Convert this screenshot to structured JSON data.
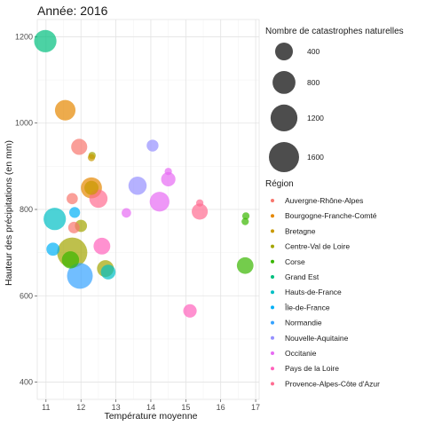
{
  "chart_data": {
    "type": "scatter",
    "title": "Année: 2016",
    "xlabel": "Température moyenne",
    "ylabel": "Hauteur des précipitations (en mm)",
    "xlim": [
      10.75,
      17.1
    ],
    "ylim": [
      360,
      1240
    ],
    "xticks": [
      11,
      12,
      13,
      14,
      15,
      16,
      17
    ],
    "yticks": [
      400,
      600,
      800,
      1000,
      1200
    ],
    "grid": true,
    "size_legend": {
      "title": "Nombre de catastrophes naturelles",
      "values": [
        400,
        800,
        1200,
        1600
      ],
      "color": "#4d4d4d"
    },
    "color_legend": {
      "title": "Région",
      "placement": "right",
      "items": [
        {
          "name": "Auvergne-Rhône-Alpes",
          "color": "#F8766D"
        },
        {
          "name": "Bourgogne-Franche-Comté",
          "color": "#E58700"
        },
        {
          "name": "Bretagne",
          "color": "#C99800"
        },
        {
          "name": "Centre-Val de Loire",
          "color": "#A3A500"
        },
        {
          "name": "Corse",
          "color": "#39B600"
        },
        {
          "name": "Grand Est",
          "color": "#00BF7D"
        },
        {
          "name": "Hauts-de-France",
          "color": "#00BFC4"
        },
        {
          "name": "Île-de-France",
          "color": "#00B0F6"
        },
        {
          "name": "Normandie",
          "color": "#35A2FF"
        },
        {
          "name": "Nouvelle-Aquitaine",
          "color": "#9590FF"
        },
        {
          "name": "Occitanie",
          "color": "#E76BF3"
        },
        {
          "name": "Pays de la Loire",
          "color": "#FF62BC"
        },
        {
          "name": "Provence-Alpes-Côte d'Azur",
          "color": "#FF6C91"
        }
      ]
    },
    "points": [
      {
        "x": 10.98,
        "y": 1190,
        "size": 750,
        "region": "Grand Est"
      },
      {
        "x": 11.55,
        "y": 1030,
        "size": 600,
        "region": "Bourgogne-Franche-Comté"
      },
      {
        "x": 11.95,
        "y": 945,
        "size": 300,
        "region": "Auvergne-Rhône-Alpes"
      },
      {
        "x": 12.32,
        "y": 925,
        "size": 10,
        "region": "Centre-Val de Loire"
      },
      {
        "x": 12.3,
        "y": 920,
        "size": 10,
        "region": "Bretagne"
      },
      {
        "x": 12.3,
        "y": 850,
        "size": 640,
        "region": "Bourgogne-Franche-Comté"
      },
      {
        "x": 12.3,
        "y": 850,
        "size": 200,
        "region": "Bretagne"
      },
      {
        "x": 12.5,
        "y": 825,
        "size": 430,
        "region": "Provence-Alpes-Côte d'Azur"
      },
      {
        "x": 11.75,
        "y": 825,
        "size": 90,
        "region": "Auvergne-Rhône-Alpes"
      },
      {
        "x": 11.25,
        "y": 778,
        "size": 750,
        "region": "Hauts-de-France"
      },
      {
        "x": 11.8,
        "y": 758,
        "size": 100,
        "region": "Auvergne-Rhône-Alpes"
      },
      {
        "x": 12.0,
        "y": 762,
        "size": 120,
        "region": "Centre-Val de Loire"
      },
      {
        "x": 11.82,
        "y": 793,
        "size": 80,
        "region": "Île-de-France"
      },
      {
        "x": 11.2,
        "y": 708,
        "size": 160,
        "region": "Île-de-France"
      },
      {
        "x": 11.75,
        "y": 700,
        "size": 1600,
        "region": "Centre-Val de Loire"
      },
      {
        "x": 11.7,
        "y": 683,
        "size": 370,
        "region": "Corse"
      },
      {
        "x": 11.97,
        "y": 646,
        "size": 1080,
        "region": "Normandie"
      },
      {
        "x": 12.6,
        "y": 715,
        "size": 340,
        "region": "Pays de la Loire"
      },
      {
        "x": 12.7,
        "y": 663,
        "size": 340,
        "region": "Centre-Val de Loire"
      },
      {
        "x": 12.78,
        "y": 655,
        "size": 230,
        "region": "Hauts-de-France"
      },
      {
        "x": 13.3,
        "y": 792,
        "size": 45,
        "region": "Occitanie"
      },
      {
        "x": 13.62,
        "y": 855,
        "size": 430,
        "region": "Nouvelle-Aquitaine"
      },
      {
        "x": 14.05,
        "y": 948,
        "size": 110,
        "region": "Nouvelle-Aquitaine"
      },
      {
        "x": 14.25,
        "y": 818,
        "size": 540,
        "region": "Occitanie"
      },
      {
        "x": 14.5,
        "y": 870,
        "size": 210,
        "region": "Occitanie"
      },
      {
        "x": 14.5,
        "y": 888,
        "size": 10,
        "region": "Occitanie"
      },
      {
        "x": 15.4,
        "y": 795,
        "size": 300,
        "region": "Provence-Alpes-Côte d'Azur"
      },
      {
        "x": 15.4,
        "y": 815,
        "size": 10,
        "region": "Provence-Alpes-Côte d'Azur"
      },
      {
        "x": 15.12,
        "y": 565,
        "size": 170,
        "region": "Pays de la Loire"
      },
      {
        "x": 16.7,
        "y": 670,
        "size": 330,
        "region": "Corse"
      },
      {
        "x": 16.7,
        "y": 772,
        "size": 10,
        "region": "Corse"
      },
      {
        "x": 16.72,
        "y": 785,
        "size": 10,
        "region": "Corse"
      }
    ]
  }
}
